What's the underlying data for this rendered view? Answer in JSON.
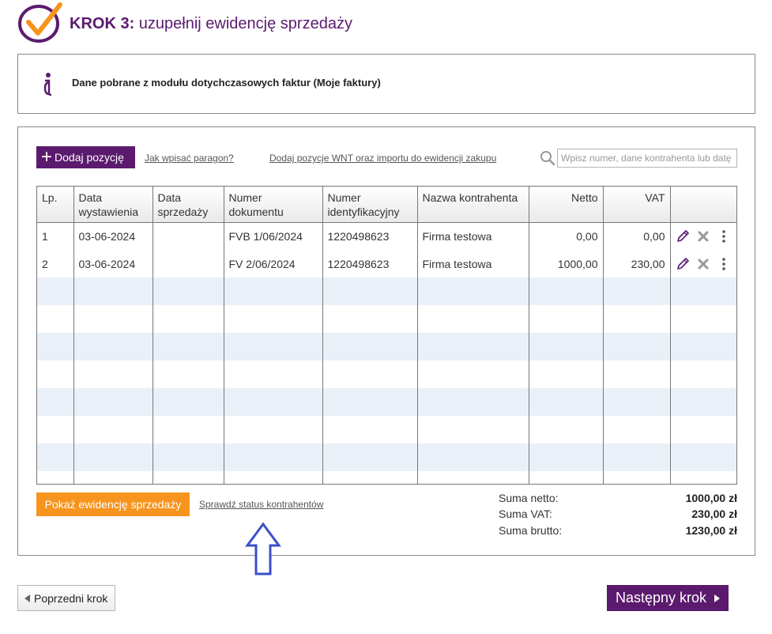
{
  "header": {
    "step_number": "KROK 3:",
    "step_title": "uzupełnij ewidencję sprzedaży",
    "logo_icon": "checkmark-circle-icon",
    "brand_color": "#5b1a6e"
  },
  "info": {
    "icon": "info-icon",
    "text": "Dane pobrane z modułu dotychczasowych faktur (Moje faktury)"
  },
  "toolbar": {
    "add_label": "Dodaj pozycję",
    "paragon_link": "Jak wpisać paragon?",
    "wnt_link": "Dodaj pozycje WNT oraz importu do ewidencji zakupu",
    "search_placeholder": "Wpisz numer, dane kontrahenta lub datę"
  },
  "table": {
    "columns": {
      "lp": "Lp.",
      "issue_date": "Data wystawienia",
      "sale_date": "Data sprzedaży",
      "doc_number": "Numer dokumentu",
      "id_number": "Numer identyfikacyjny",
      "contractor": "Nazwa kontrahenta",
      "net": "Netto",
      "vat": "VAT"
    },
    "rows": [
      {
        "lp": "1",
        "issue_date": "03-06-2024",
        "sale_date": "",
        "doc_number": "FVB 1/06/2024",
        "id_number": "1220498623",
        "contractor": "Firma testowa",
        "net": "0,00",
        "vat": "0,00"
      },
      {
        "lp": "2",
        "issue_date": "03-06-2024",
        "sale_date": "",
        "doc_number": "FV 2/06/2024",
        "id_number": "1220498623",
        "contractor": "Firma testowa",
        "net": "1000,00",
        "vat": "230,00"
      }
    ],
    "row_icons": [
      "pencil-icon",
      "delete-x-icon",
      "more-vertical-icon"
    ],
    "stripe_color": "#eaf0f8"
  },
  "bottom": {
    "show_button": "Pokaż ewidencję sprzedaży",
    "status_link": "Sprawdź status kontrahentów",
    "show_button_color": "#f7941d"
  },
  "summary": {
    "net_label": "Suma netto:",
    "net_value": "1000,00 zł",
    "vat_label": "Suma VAT:",
    "vat_value": "230,00 zł",
    "gross_label": "Suma brutto:",
    "gross_value": "1230,00 zł"
  },
  "annotation": {
    "arrow_icon": "up-arrow-icon",
    "arrow_color": "#3a4fc9"
  },
  "nav": {
    "prev_label": "Poprzedni krok",
    "next_label": "Następny krok"
  }
}
